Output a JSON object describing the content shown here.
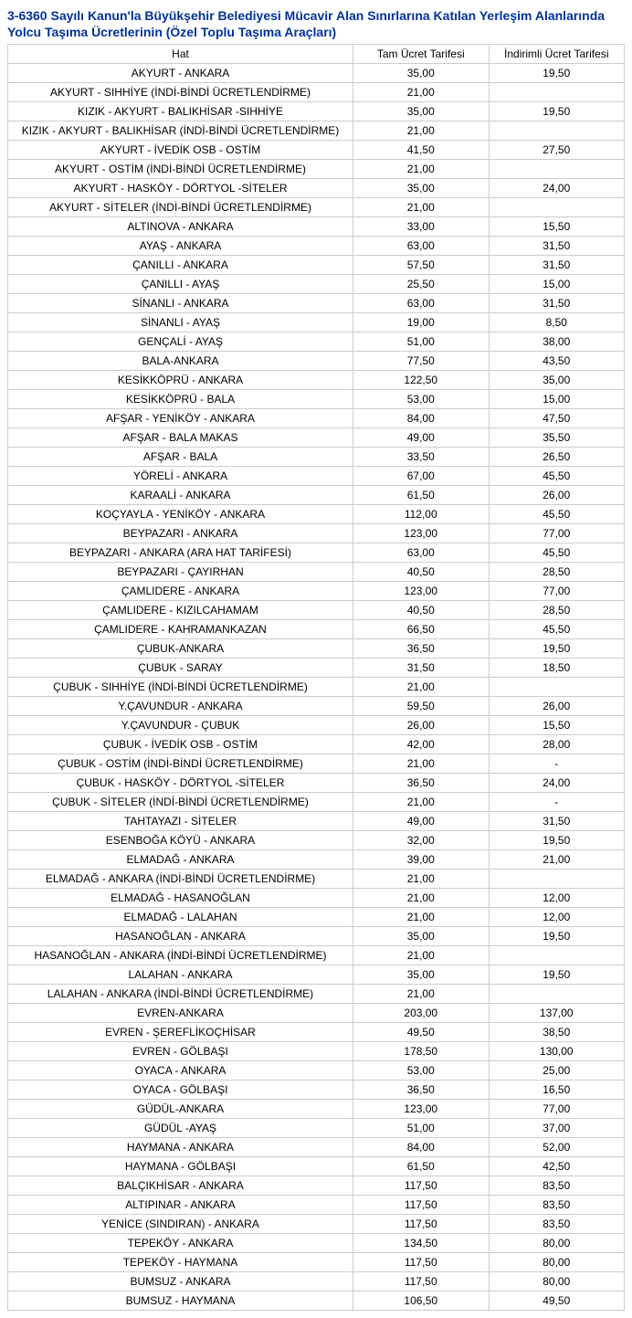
{
  "title": "3-6360 Sayılı Kanun'la Büyükşehir Belediyesi Mücavir Alan Sınırlarına Katılan Yerleşim Alanlarında Yolcu Taşıma Ücretlerinin (Özel Toplu Taşıma Araçları)",
  "columns": [
    "Hat",
    "Tam Ücret Tarifesi",
    "İndirimli Ücret Tarifesi"
  ],
  "rows": [
    [
      "AKYURT - ANKARA",
      "35,00",
      "19,50"
    ],
    [
      "AKYURT - SIHHİYE (İNDİ-BİNDİ ÜCRETLENDİRME)",
      "21,00",
      ""
    ],
    [
      "KIZIK - AKYURT - BALIKHİSAR -SIHHİYE",
      "35,00",
      "19,50"
    ],
    [
      "KIZIK - AKYURT - BALIKHİSAR (İNDİ-BİNDİ ÜCRETLENDİRME)",
      "21,00",
      ""
    ],
    [
      "AKYURT - İVEDİK OSB - OSTİM",
      "41,50",
      "27,50"
    ],
    [
      "AKYURT - OSTİM (İNDİ-BİNDİ ÜCRETLENDİRME)",
      "21,00",
      ""
    ],
    [
      "AKYURT - HASKÖY - DÖRTYOL -SİTELER",
      "35,00",
      "24,00"
    ],
    [
      "AKYURT - SİTELER (İNDİ-BİNDİ ÜCRETLENDİRME)",
      "21,00",
      ""
    ],
    [
      "ALTINOVA - ANKARA",
      "33,00",
      "15,50"
    ],
    [
      "AYAŞ - ANKARA",
      "63,00",
      "31,50"
    ],
    [
      "ÇANILLI - ANKARA",
      "57,50",
      "31,50"
    ],
    [
      "ÇANILLI - AYAŞ",
      "25,50",
      "15,00"
    ],
    [
      "SİNANLI - ANKARA",
      "63,00",
      "31,50"
    ],
    [
      "SİNANLI - AYAŞ",
      "19,00",
      "8,50"
    ],
    [
      "GENÇALİ - AYAŞ",
      "51,00",
      "38,00"
    ],
    [
      "BALA-ANKARA",
      "77,50",
      "43,50"
    ],
    [
      "KESİKKÖPRÜ - ANKARA",
      "122,50",
      "35,00"
    ],
    [
      "KESİKKÖPRÜ - BALA",
      "53,00",
      "15,00"
    ],
    [
      "AFŞAR - YENİKÖY - ANKARA",
      "84,00",
      "47,50"
    ],
    [
      "AFŞAR - BALA MAKAS",
      "49,00",
      "35,50"
    ],
    [
      "AFŞAR - BALA",
      "33,50",
      "26,50"
    ],
    [
      "YÖRELİ - ANKARA",
      "67,00",
      "45,50"
    ],
    [
      "KARAALİ - ANKARA",
      "61,50",
      "26,00"
    ],
    [
      "KOÇYAYLA - YENİKÖY - ANKARA",
      "112,00",
      "45,50"
    ],
    [
      "BEYPAZARI - ANKARA",
      "123,00",
      "77,00"
    ],
    [
      "BEYPAZARI - ANKARA (ARA HAT TARİFESİ)",
      "63,00",
      "45,50"
    ],
    [
      "BEYPAZARI - ÇAYIRHAN",
      "40,50",
      "28,50"
    ],
    [
      "ÇAMLIDERE - ANKARA",
      "123,00",
      "77,00"
    ],
    [
      "ÇAMLIDERE - KIZILCAHAMAM",
      "40,50",
      "28,50"
    ],
    [
      "ÇAMLIDERE - KAHRAMANKAZAN",
      "66,50",
      "45,50"
    ],
    [
      "ÇUBUK-ANKARA",
      "36,50",
      "19,50"
    ],
    [
      "ÇUBUK - SARAY",
      "31,50",
      "18,50"
    ],
    [
      "ÇUBUK - SIHHİYE (İNDİ-BİNDİ ÜCRETLENDİRME)",
      "21,00",
      ""
    ],
    [
      "Y.ÇAVUNDUR - ANKARA",
      "59,50",
      "26,00"
    ],
    [
      "Y.ÇAVUNDUR - ÇUBUK",
      "26,00",
      "15,50"
    ],
    [
      "ÇUBUK - İVEDİK OSB - OSTİM",
      "42,00",
      "28,00"
    ],
    [
      "ÇUBUK - OSTİM (İNDİ-BİNDİ ÜCRETLENDİRME)",
      "21,00",
      "-"
    ],
    [
      "ÇUBUK - HASKÖY - DÖRTYOL -SİTELER",
      "36,50",
      "24,00"
    ],
    [
      "ÇUBUK - SİTELER (İNDİ-BİNDİ ÜCRETLENDİRME)",
      "21,00",
      "-"
    ],
    [
      "TAHTAYAZI - SİTELER",
      "49,00",
      "31,50"
    ],
    [
      "ESENBOĞA KÖYÜ - ANKARA",
      "32,00",
      "19,50"
    ],
    [
      "ELMADAĞ - ANKARA",
      "39,00",
      "21,00"
    ],
    [
      "ELMADAĞ - ANKARA (İNDİ-BİNDİ ÜCRETLENDİRME)",
      "21,00",
      ""
    ],
    [
      "ELMADAĞ - HASANOĞLAN",
      "21,00",
      "12,00"
    ],
    [
      "ELMADAĞ - LALAHAN",
      "21,00",
      "12,00"
    ],
    [
      "HASANOĞLAN - ANKARA",
      "35,00",
      "19,50"
    ],
    [
      "HASANOĞLAN - ANKARA (İNDİ-BİNDİ ÜCRETLENDİRME)",
      "21,00",
      ""
    ],
    [
      "LALAHAN - ANKARA",
      "35,00",
      "19,50"
    ],
    [
      "LALAHAN - ANKARA (İNDİ-BİNDİ ÜCRETLENDİRME)",
      "21,00",
      ""
    ],
    [
      "EVREN-ANKARA",
      "203,00",
      "137,00"
    ],
    [
      "EVREN - ŞEREFLİKOÇHİSAR",
      "49,50",
      "38,50"
    ],
    [
      "EVREN - GÖLBAŞI",
      "178,50",
      "130,00"
    ],
    [
      "OYACA - ANKARA",
      "53,00",
      "25,00"
    ],
    [
      "OYACA - GÖLBAŞI",
      "36,50",
      "16,50"
    ],
    [
      "GÜDÜL-ANKARA",
      "123,00",
      "77,00"
    ],
    [
      "GÜDÜL -AYAŞ",
      "51,00",
      "37,00"
    ],
    [
      "HAYMANA - ANKARA",
      "84,00",
      "52,00"
    ],
    [
      "HAYMANA - GÖLBAŞI",
      "61,50",
      "42,50"
    ],
    [
      "BALÇIKHİSAR - ANKARA",
      "117,50",
      "83,50"
    ],
    [
      "ALTIPINAR - ANKARA",
      "117,50",
      "83,50"
    ],
    [
      "YENİCE (SINDIRAN) - ANKARA",
      "117,50",
      "83,50"
    ],
    [
      "TEPEKÖY - ANKARA",
      "134,50",
      "80,00"
    ],
    [
      "TEPEKÖY - HAYMANA",
      "117,50",
      "80,00"
    ],
    [
      "BUMSUZ - ANKARA",
      "117,50",
      "80,00"
    ],
    [
      "BUMSUZ - HAYMANA",
      "106,50",
      "49,50"
    ]
  ]
}
